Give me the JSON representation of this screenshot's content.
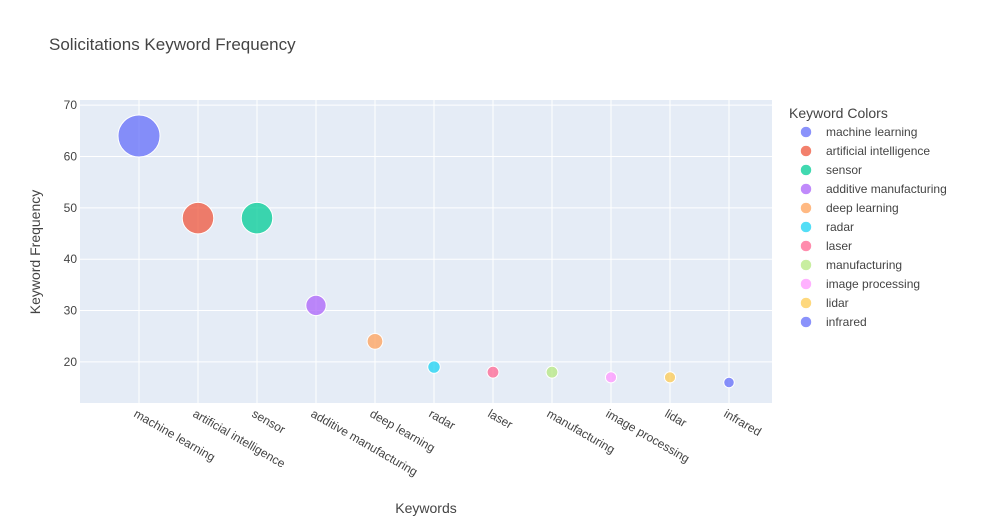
{
  "chart_data": {
    "type": "scatter",
    "title": "Solicitations Keyword Frequency",
    "xlabel": "Keywords",
    "ylabel": "Keyword Frequency",
    "legend_title": "Keyword Colors",
    "legend_position": "right",
    "grid": true,
    "ylim": [
      12,
      71
    ],
    "yticks": [
      20,
      30,
      40,
      50,
      60,
      70
    ],
    "categories": [
      "machine learning",
      "artificial intelligence",
      "sensor",
      "additive manufacturing",
      "deep learning",
      "radar",
      "laser",
      "manufacturing",
      "image processing",
      "lidar",
      "infrared"
    ],
    "values": [
      64,
      48,
      48,
      31,
      24,
      19,
      18,
      18,
      17,
      17,
      16
    ],
    "colors": [
      "#636efa",
      "#EF553B",
      "#00cc96",
      "#ab63fa",
      "#FFA15A",
      "#19d3f3",
      "#FF6692",
      "#B6E880",
      "#FF97FF",
      "#FECB52",
      "#636efa"
    ],
    "marker_size": "proportional to value"
  }
}
